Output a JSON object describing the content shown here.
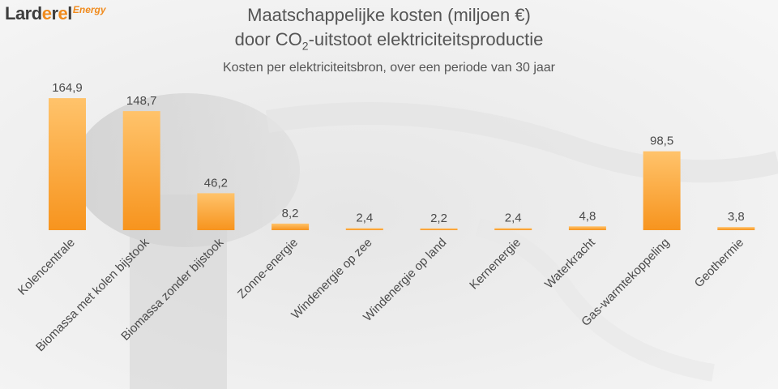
{
  "logo": {
    "part1": "Lard",
    "part2": "e",
    "part3": "r",
    "part4": "e",
    "part5": "l",
    "sub": "Energy"
  },
  "header": {
    "title_line1": "Maatschappelijke kosten (miljoen €)",
    "title_line2_pre": "door CO",
    "title_line2_sub": "2",
    "title_line2_post": "-uitstoot elektriciteitsproductie",
    "subtitle": "Kosten per elektriciteitsbron, over een periode van 30 jaar"
  },
  "colors": {
    "bar_top": "#ffc36b",
    "bar_bottom": "#f7941e",
    "text": "#555555",
    "label": "#4a4a4a",
    "logo_orange": "#f08a1c"
  },
  "chart_data": {
    "type": "bar",
    "categories": [
      "Kolencentrale",
      "Biomassa met kolen bijstook",
      "Biomassa zonder bijstook",
      "Zonne-energie",
      "Windenergie op zee",
      "Windenergie op land",
      "Kernenergie",
      "Waterkracht",
      "Gas-warmtekoppeling",
      "Geothermie"
    ],
    "values": [
      164.9,
      148.7,
      46.2,
      8.2,
      2.4,
      2.2,
      2.4,
      4.8,
      98.5,
      3.8
    ],
    "value_labels": [
      "164,9",
      "148,7",
      "46,2",
      "8,2",
      "2,4",
      "2,2",
      "2,4",
      "4,8",
      "98,5",
      "3,8"
    ],
    "title": "Maatschappelijke kosten (miljoen €) door CO2-uitstoot elektriciteitsproductie",
    "subtitle": "Kosten per elektriciteitsbron, over een periode van 30 jaar",
    "xlabel": "",
    "ylabel": "",
    "ylim": [
      0,
      165
    ],
    "grid": false,
    "legend": "none"
  }
}
